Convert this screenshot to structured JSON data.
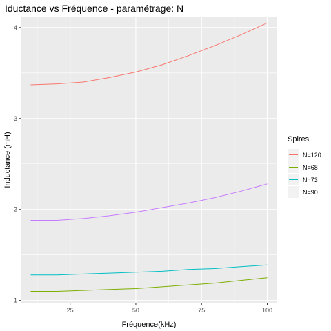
{
  "chart_data": {
    "type": "line",
    "title": "Iductance vs Fréquence - paramétrage: N",
    "xlabel": "Fréquence(kHz)",
    "ylabel": "Inductance (mH)",
    "xlim": [
      6.2,
      103.8
    ],
    "ylim": [
      0.967,
      4.12
    ],
    "x_ticks": [
      25,
      50,
      75,
      100
    ],
    "y_ticks": [
      1,
      2,
      3,
      4
    ],
    "x_tick_labels": [
      "25",
      "50",
      "75",
      "100"
    ],
    "y_tick_labels": [
      "1",
      "2",
      "3",
      "4"
    ],
    "grid": true,
    "legend": {
      "title": "Spires",
      "placement": "right"
    },
    "x": [
      10,
      20,
      30,
      40,
      50,
      60,
      70,
      80,
      90,
      100
    ],
    "series": [
      {
        "name": "N=120",
        "color": "#F8766D",
        "values": [
          3.37,
          3.38,
          3.4,
          3.45,
          3.51,
          3.59,
          3.69,
          3.8,
          3.92,
          4.05
        ]
      },
      {
        "name": "N=68",
        "color": "#7CAE00",
        "values": [
          1.1,
          1.1,
          1.11,
          1.12,
          1.13,
          1.15,
          1.17,
          1.19,
          1.22,
          1.25
        ]
      },
      {
        "name": "N=73",
        "color": "#00BFC4",
        "values": [
          1.28,
          1.28,
          1.29,
          1.3,
          1.31,
          1.32,
          1.34,
          1.35,
          1.37,
          1.39
        ]
      },
      {
        "name": "N=90",
        "color": "#C77CFF",
        "values": [
          1.88,
          1.88,
          1.9,
          1.93,
          1.97,
          2.02,
          2.07,
          2.13,
          2.2,
          2.28
        ]
      }
    ]
  }
}
